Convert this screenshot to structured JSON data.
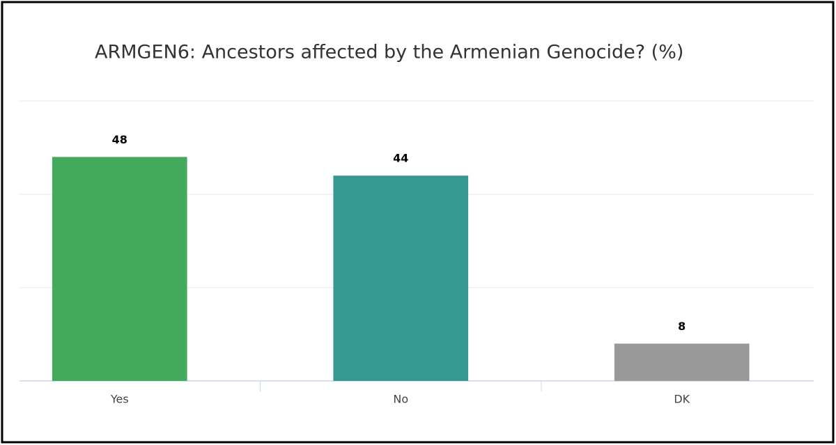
{
  "chart_data": {
    "type": "bar",
    "title": "ARMGEN6: Ancestors affected by the Armenian Genocide? (%)",
    "categories": [
      "Yes",
      "No",
      "DK"
    ],
    "values": [
      48,
      44,
      8
    ],
    "colors": [
      "#43aa5b",
      "#379791",
      "#999999"
    ],
    "ylim": [
      0,
      60
    ],
    "yticks": [
      0,
      20,
      40,
      60
    ],
    "grid": true
  }
}
